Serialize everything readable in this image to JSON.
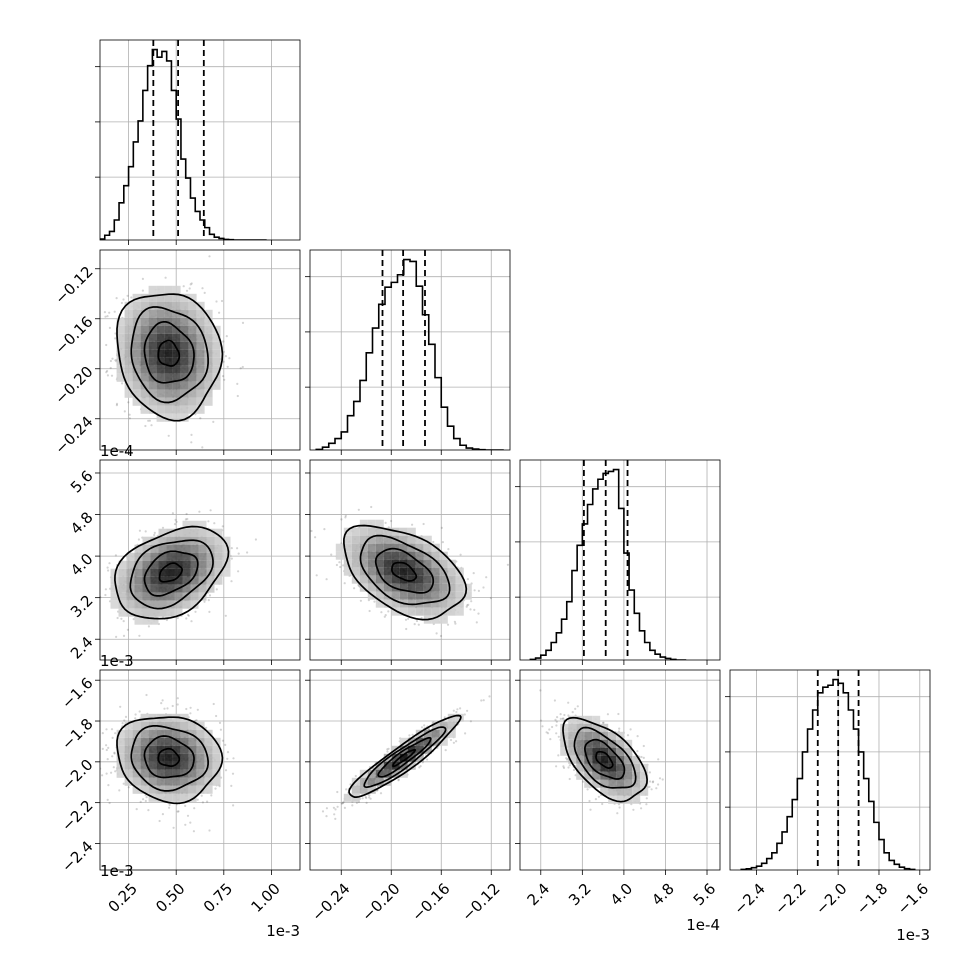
{
  "chart_data": {
    "type": "corner",
    "params": [
      {
        "range": [
          0.1,
          1.15
        ],
        "ticks": [
          0.25,
          0.5,
          0.75,
          1.0
        ],
        "tick_labels": [
          "0.25",
          "0.50",
          "0.75",
          "1.00"
        ],
        "offset": "1e-3"
      },
      {
        "range": [
          -0.265,
          -0.105
        ],
        "ticks": [
          -0.24,
          -0.2,
          -0.16,
          -0.12
        ],
        "tick_labels": [
          "−0.24",
          "−0.20",
          "−0.16",
          "−0.12"
        ],
        "y_tick_labels": [
          "−0.12",
          "−0.16",
          "−0.20",
          "−0.24"
        ],
        "offset": "1e-4"
      },
      {
        "range": [
          2.0,
          5.85
        ],
        "ticks": [
          2.4,
          3.2,
          4.0,
          4.8,
          5.6
        ],
        "tick_labels": [
          "2.4",
          "3.2",
          "4.0",
          "4.8",
          "5.6"
        ],
        "offset": "1e-4"
      },
      {
        "range": [
          -2.53,
          -1.55
        ],
        "ticks": [
          -2.4,
          -2.2,
          -2.0,
          -1.8,
          -1.6
        ],
        "tick_labels": [
          "−2.4",
          "−2.2",
          "−2.0",
          "−1.8",
          "−1.6"
        ],
        "offset": "1e-3"
      }
    ],
    "offset_labels": {
      "row1_y": "1e-4",
      "row2_y": "1e-3",
      "row3_y": "1e-3",
      "col0_x": "1e-3",
      "col2_x": "1e-4",
      "col3_x": "1e-3"
    },
    "histograms": [
      {
        "param": 0,
        "quantiles": [
          0.38,
          0.51,
          0.645
        ],
        "edges": [
          0.1,
          0.125,
          0.15,
          0.175,
          0.2,
          0.225,
          0.25,
          0.275,
          0.3,
          0.325,
          0.35,
          0.375,
          0.4,
          0.425,
          0.45,
          0.475,
          0.5,
          0.525,
          0.55,
          0.575,
          0.6,
          0.625,
          0.65,
          0.675,
          0.7,
          0.725,
          0.75,
          0.775,
          0.8,
          0.825,
          0.85,
          0.875,
          0.9,
          0.925,
          0.95,
          0.975
        ],
        "counts": [
          0.5,
          2.5,
          4.5,
          10.5,
          19.5,
          28.5,
          38.5,
          51.5,
          62.5,
          78.5,
          91.5,
          100,
          96,
          99,
          94,
          78.5,
          63.5,
          42.5,
          32.5,
          22,
          15,
          10.5,
          6.5,
          3,
          1.5,
          0.8,
          0.3,
          0.2,
          0,
          0,
          0,
          0,
          0,
          0,
          0
        ]
      },
      {
        "param": 1,
        "quantiles": [
          -0.207,
          -0.1905,
          -0.173
        ],
        "edges": [
          -0.26,
          -0.255,
          -0.25,
          -0.245,
          -0.24,
          -0.235,
          -0.23,
          -0.225,
          -0.22,
          -0.215,
          -0.21,
          -0.205,
          -0.2,
          -0.195,
          -0.19,
          -0.185,
          -0.18,
          -0.175,
          -0.17,
          -0.165,
          -0.16,
          -0.155,
          -0.15,
          -0.145,
          -0.14,
          -0.135,
          -0.13,
          -0.125,
          -0.12,
          -0.115,
          -0.11
        ],
        "counts": [
          0.3,
          1.5,
          3.5,
          6,
          9.5,
          18,
          25.5,
          36.5,
          51,
          64,
          76.5,
          85.5,
          88,
          92,
          100,
          99,
          86,
          71,
          55.5,
          38,
          22.5,
          12.5,
          6,
          2.5,
          1,
          0.5,
          0.2,
          0,
          0,
          0
        ]
      },
      {
        "param": 2,
        "quantiles": [
          3.23,
          3.65,
          4.07
        ],
        "edges": [
          2.2,
          2.3,
          2.4,
          2.5,
          2.6,
          2.7,
          2.8,
          2.9,
          3.0,
          3.1,
          3.2,
          3.3,
          3.4,
          3.5,
          3.6,
          3.7,
          3.8,
          3.9,
          4.0,
          4.1,
          4.2,
          4.3,
          4.4,
          4.5,
          4.6,
          4.7,
          4.8,
          4.9,
          5.0,
          5.1,
          5.2
        ],
        "counts": [
          0.3,
          1,
          2.5,
          5,
          9,
          14,
          21,
          30,
          46,
          59,
          70,
          80,
          88,
          93,
          96,
          97,
          98,
          78,
          55,
          36,
          24,
          15,
          9,
          5,
          3,
          1.5,
          0.8,
          0.3,
          0,
          0
        ]
      },
      {
        "param": 3,
        "quantiles": [
          -2.1,
          -2.0,
          -1.9
        ],
        "edges": [
          -2.475,
          -2.45,
          -2.425,
          -2.4,
          -2.375,
          -2.35,
          -2.325,
          -2.3,
          -2.275,
          -2.25,
          -2.225,
          -2.2,
          -2.175,
          -2.15,
          -2.125,
          -2.1,
          -2.075,
          -2.05,
          -2.025,
          -2.0,
          -1.975,
          -1.95,
          -1.925,
          -1.9,
          -1.875,
          -1.85,
          -1.825,
          -1.8,
          -1.775,
          -1.75,
          -1.725,
          -1.7,
          -1.675,
          -1.65,
          -1.625
        ],
        "counts": [
          0.3,
          0.6,
          1.2,
          2,
          3.5,
          6,
          9,
          14,
          20,
          28,
          37,
          48,
          62,
          74,
          84,
          93,
          96,
          97,
          100,
          98,
          93,
          84,
          74,
          62,
          48,
          36,
          25,
          16,
          9,
          5,
          3,
          1.5,
          0.7,
          0.3
        ]
      }
    ],
    "pairs": [
      {
        "row": 1,
        "col": 0,
        "center": [
          0.46,
          -0.188
        ],
        "sd": [
          0.13,
          0.024
        ],
        "rho": -0.1
      },
      {
        "row": 2,
        "col": 0,
        "center": [
          0.47,
          3.68
        ],
        "sd": [
          0.14,
          0.42
        ],
        "rho": 0.35
      },
      {
        "row": 2,
        "col": 1,
        "center": [
          -0.19,
          3.7
        ],
        "sd": [
          0.023,
          0.42
        ],
        "rho": -0.45
      },
      {
        "row": 3,
        "col": 0,
        "center": [
          0.46,
          -1.98
        ],
        "sd": [
          0.13,
          0.1
        ],
        "rho": -0.1
      },
      {
        "row": 3,
        "col": 1,
        "center": [
          -0.19,
          -1.98
        ],
        "sd": [
          0.021,
          0.095
        ],
        "rho": 0.93
      },
      {
        "row": 3,
        "col": 2,
        "center": [
          3.62,
          -1.99
        ],
        "sd": [
          0.38,
          0.095
        ],
        "rho": -0.55
      }
    ],
    "grid": true
  }
}
